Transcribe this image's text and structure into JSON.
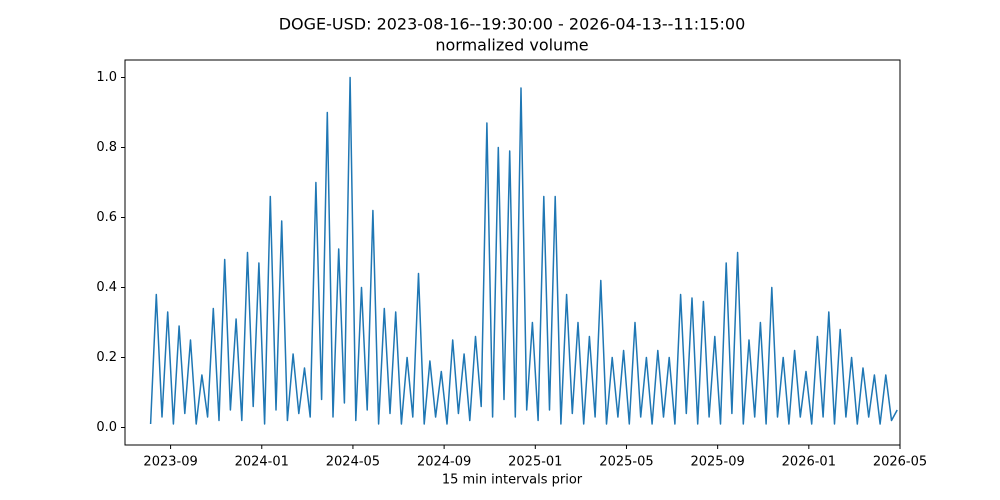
{
  "chart_data": {
    "type": "line",
    "title": "DOGE-USD: 2023-08-16--19:30:00 - 2026-04-13--11:15:00",
    "subtitle": "normalized volume",
    "x_label": "15 min intervals prior",
    "color": "#1f77b4",
    "x": [
      "2023-08",
      "2023-08",
      "2023-08",
      "2023-08",
      "2023-09",
      "2023-09",
      "2023-09",
      "2023-09",
      "2023-10",
      "2023-10",
      "2023-10",
      "2023-10",
      "2023-11",
      "2023-11",
      "2023-11",
      "2023-11",
      "2023-12",
      "2023-12",
      "2023-12",
      "2023-12",
      "2024-01",
      "2024-01",
      "2024-01",
      "2024-01",
      "2024-02",
      "2024-02",
      "2024-02",
      "2024-02",
      "2024-03",
      "2024-03",
      "2024-03",
      "2024-03",
      "2024-04",
      "2024-04",
      "2024-04",
      "2024-04",
      "2024-05",
      "2024-05",
      "2024-05",
      "2024-05",
      "2024-06",
      "2024-06",
      "2024-06",
      "2024-06",
      "2024-07",
      "2024-07",
      "2024-07",
      "2024-07",
      "2024-08",
      "2024-08",
      "2024-08",
      "2024-08",
      "2024-09",
      "2024-09",
      "2024-09",
      "2024-09",
      "2024-10",
      "2024-10",
      "2024-10",
      "2024-10",
      "2024-11",
      "2024-11",
      "2024-11",
      "2024-11",
      "2024-12",
      "2024-12",
      "2024-12",
      "2024-12",
      "2025-01",
      "2025-01",
      "2025-01",
      "2025-01",
      "2025-02",
      "2025-02",
      "2025-02",
      "2025-02",
      "2025-03",
      "2025-03",
      "2025-03",
      "2025-03",
      "2025-04",
      "2025-04",
      "2025-04",
      "2025-04",
      "2025-05",
      "2025-05",
      "2025-05",
      "2025-05",
      "2025-06",
      "2025-06",
      "2025-06",
      "2025-06",
      "2025-07",
      "2025-07",
      "2025-07",
      "2025-07",
      "2025-08",
      "2025-08",
      "2025-08",
      "2025-08",
      "2025-09",
      "2025-09",
      "2025-09",
      "2025-09",
      "2025-10",
      "2025-10",
      "2025-10",
      "2025-10",
      "2025-11",
      "2025-11",
      "2025-11",
      "2025-11",
      "2025-12",
      "2025-12",
      "2025-12",
      "2025-12",
      "2026-01",
      "2026-01",
      "2026-01",
      "2026-01",
      "2026-02",
      "2026-02",
      "2026-02",
      "2026-02",
      "2026-03",
      "2026-03",
      "2026-03",
      "2026-03",
      "2026-04",
      "2026-04",
      "2026-04",
      "2026-04"
    ],
    "values": [
      0.01,
      0.38,
      0.03,
      0.33,
      0.01,
      0.29,
      0.04,
      0.25,
      0.01,
      0.15,
      0.03,
      0.34,
      0.02,
      0.48,
      0.05,
      0.31,
      0.02,
      0.5,
      0.06,
      0.47,
      0.01,
      0.66,
      0.05,
      0.59,
      0.02,
      0.21,
      0.04,
      0.17,
      0.03,
      0.7,
      0.08,
      0.9,
      0.03,
      0.51,
      0.07,
      1.0,
      0.02,
      0.4,
      0.05,
      0.62,
      0.01,
      0.34,
      0.04,
      0.33,
      0.01,
      0.2,
      0.03,
      0.44,
      0.01,
      0.19,
      0.03,
      0.16,
      0.01,
      0.25,
      0.04,
      0.21,
      0.02,
      0.26,
      0.06,
      0.87,
      0.03,
      0.8,
      0.08,
      0.79,
      0.03,
      0.97,
      0.05,
      0.3,
      0.02,
      0.66,
      0.05,
      0.66,
      0.01,
      0.38,
      0.04,
      0.3,
      0.01,
      0.26,
      0.03,
      0.42,
      0.01,
      0.2,
      0.03,
      0.22,
      0.01,
      0.3,
      0.03,
      0.2,
      0.01,
      0.22,
      0.03,
      0.2,
      0.01,
      0.38,
      0.04,
      0.37,
      0.01,
      0.36,
      0.03,
      0.26,
      0.01,
      0.47,
      0.04,
      0.5,
      0.01,
      0.25,
      0.03,
      0.3,
      0.01,
      0.4,
      0.03,
      0.2,
      0.01,
      0.22,
      0.03,
      0.16,
      0.01,
      0.26,
      0.03,
      0.33,
      0.01,
      0.28,
      0.03,
      0.2,
      0.01,
      0.17,
      0.03,
      0.15,
      0.01,
      0.15,
      0.02,
      0.05
    ],
    "xlim": [
      "2023-07",
      "2026-05"
    ],
    "xticks": [
      "2023-09",
      "2024-01",
      "2024-05",
      "2024-09",
      "2025-01",
      "2025-05",
      "2025-09",
      "2026-01",
      "2026-05"
    ],
    "ylim": [
      -0.05,
      1.05
    ],
    "yticks": [
      {
        "value": 0,
        "label": "0.0"
      },
      0.2,
      0.4,
      0.6,
      0.8,
      {
        "value": 1,
        "label": "1.0"
      }
    ]
  }
}
